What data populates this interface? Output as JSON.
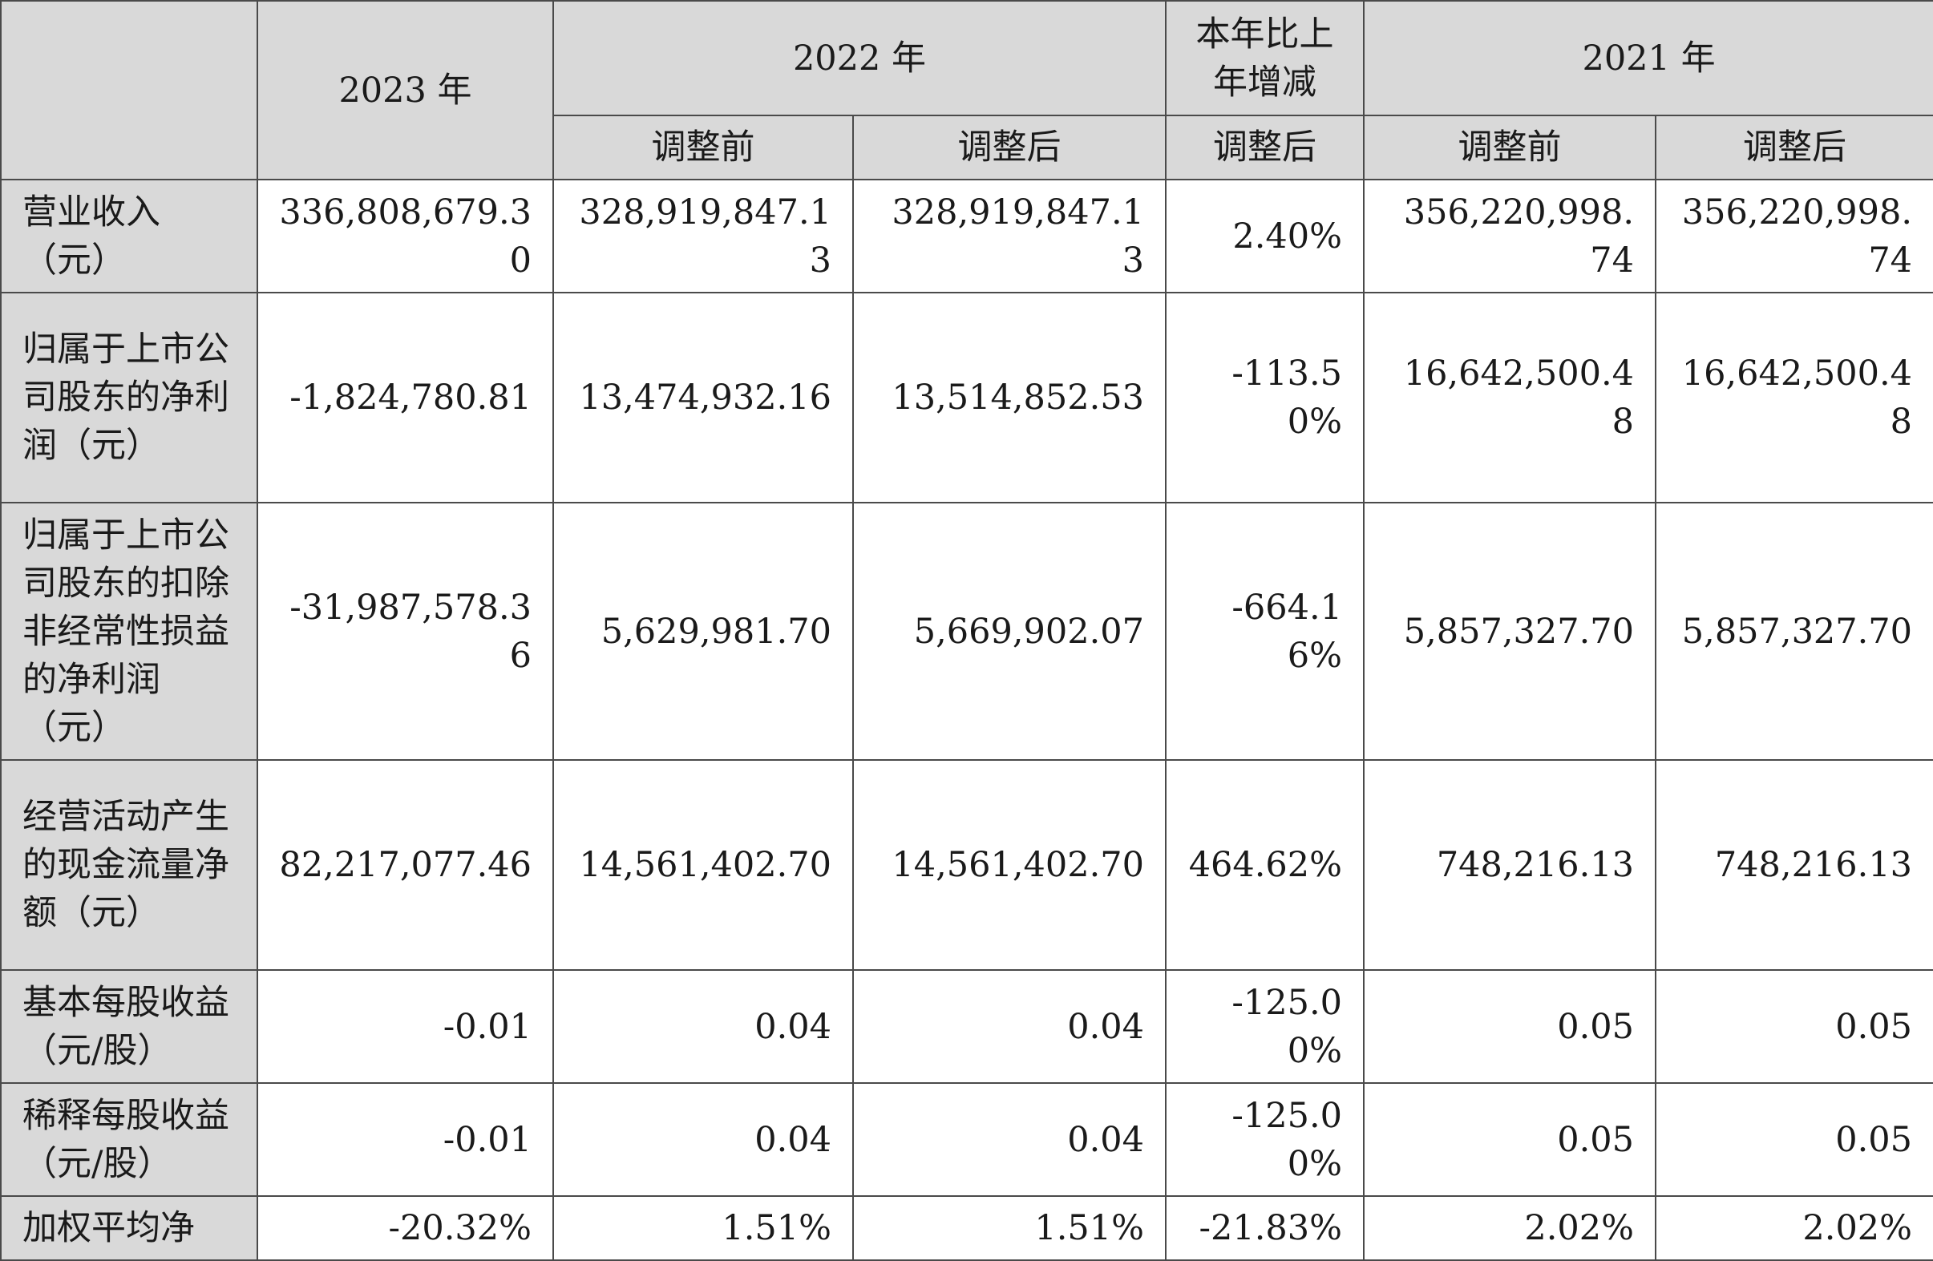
{
  "header": {
    "y2023": "2023 年",
    "y2022": "2022 年",
    "yoy": "本年比上年增减",
    "y2021": "2021 年",
    "before": "调整前",
    "after": "调整后"
  },
  "rows": [
    {
      "label": "营业收入（元）",
      "v2023": "336,808,679.30",
      "v2022_before": "328,919,847.13",
      "v2022_after": "328,919,847.13",
      "yoy": "2.40%",
      "v2021_before": "356,220,998.74",
      "v2021_after": "356,220,998.74"
    },
    {
      "label": "归属于上市公司股东的净利润（元）",
      "v2023": "-1,824,780.81",
      "v2022_before": "13,474,932.16",
      "v2022_after": "13,514,852.53",
      "yoy": "-113.50%",
      "v2021_before": "16,642,500.48",
      "v2021_after": "16,642,500.48"
    },
    {
      "label": "归属于上市公司股东的扣除非经常性损益的净利润（元）",
      "v2023": "-31,987,578.36",
      "v2022_before": "5,629,981.70",
      "v2022_after": "5,669,902.07",
      "yoy": "-664.16%",
      "v2021_before": "5,857,327.70",
      "v2021_after": "5,857,327.70"
    },
    {
      "label": "经营活动产生的现金流量净额（元）",
      "v2023": "82,217,077.46",
      "v2022_before": "14,561,402.70",
      "v2022_after": "14,561,402.70",
      "yoy": "464.62%",
      "v2021_before": "748,216.13",
      "v2021_after": "748,216.13"
    },
    {
      "label": "基本每股收益（元/股）",
      "v2023": "-0.01",
      "v2022_before": "0.04",
      "v2022_after": "0.04",
      "yoy": "-125.00%",
      "v2021_before": "0.05",
      "v2021_after": "0.05"
    },
    {
      "label": "稀释每股收益（元/股）",
      "v2023": "-0.01",
      "v2022_before": "0.04",
      "v2022_after": "0.04",
      "yoy": "-125.00%",
      "v2021_before": "0.05",
      "v2021_after": "0.05"
    },
    {
      "label": "加权平均净",
      "v2023": "-20.32%",
      "v2022_before": "1.51%",
      "v2022_after": "1.51%",
      "yoy": "-21.83%",
      "v2021_before": "2.02%",
      "v2021_after": "2.02%"
    }
  ]
}
